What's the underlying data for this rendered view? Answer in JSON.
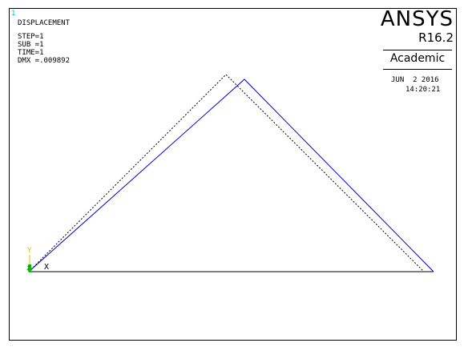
{
  "window_number": "1",
  "result_type": "DISPLACEMENT",
  "info": {
    "step": "STEP=1",
    "sub": "SUB =1",
    "time": "TIME=1",
    "dmx": "DMX =.009892"
  },
  "brand": {
    "name": "ANSYS",
    "version": "R16.2",
    "edition": "Academic"
  },
  "date": "JUN  2 2016",
  "time_of_day": "14:20:21",
  "triad": {
    "x_label": "X",
    "y_label": "Y",
    "z_label": "Z"
  },
  "colors": {
    "deformed_shape": "#0000cc",
    "undeformed_shape": "#000000",
    "window_number": "#00c0c0",
    "triad_y": "#c8c800",
    "triad_z": "#00c000"
  }
}
